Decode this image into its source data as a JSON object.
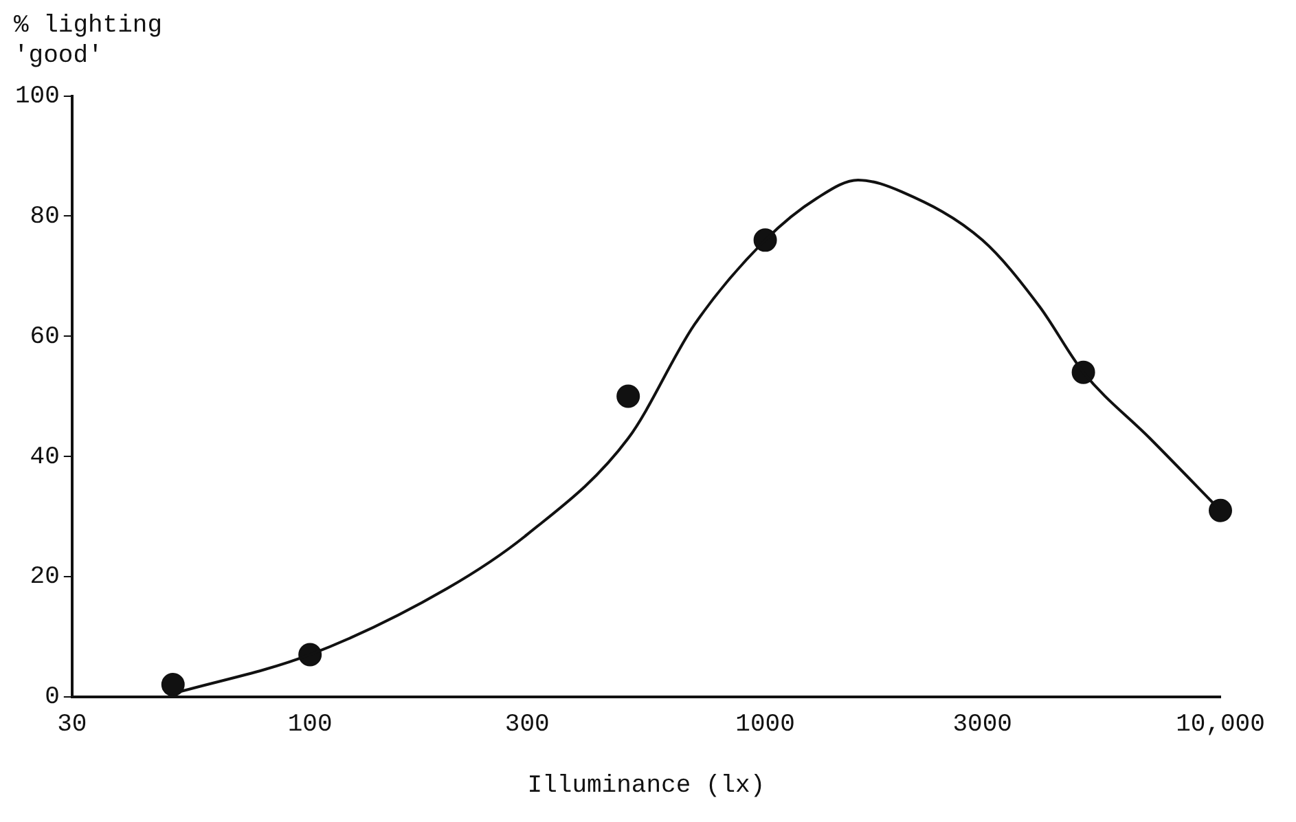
{
  "chart_data": {
    "type": "scatter",
    "xlabel": "Illuminance (lx)",
    "ylabel": "% lighting 'good'",
    "log": "x",
    "xlim": [
      30,
      10000
    ],
    "xticks": [
      30,
      100,
      300,
      1000,
      3000,
      {
        "value": 10000,
        "label": "10,000"
      }
    ],
    "ylim": [
      0,
      100
    ],
    "yticks": [
      0,
      20,
      40,
      60,
      80,
      100
    ],
    "series": [
      {
        "type": "line",
        "color": "#111111",
        "marker": "none",
        "x": [
          50,
          100,
          200,
          300,
          500,
          700,
          1000,
          1300,
          1600,
          2000,
          3000,
          4000,
          5000,
          7000,
          10000
        ],
        "values": [
          0.5,
          7,
          18,
          27,
          43,
          62,
          76,
          83,
          86,
          84,
          76,
          65,
          54,
          43,
          31
        ]
      },
      {
        "color": "#111111",
        "marker": "circle",
        "x": [
          50,
          100,
          500,
          1000,
          5000,
          10000
        ],
        "values": [
          2,
          7,
          50,
          76,
          54,
          31
        ]
      }
    ]
  }
}
